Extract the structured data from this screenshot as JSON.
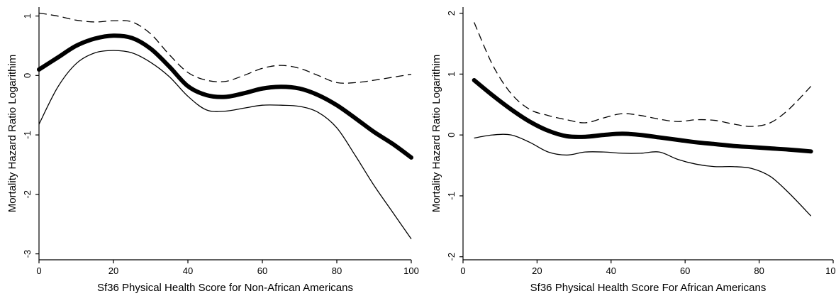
{
  "chart_data": [
    {
      "type": "line",
      "xlabel": "Sf36 Physical Health  Score for Non-African Americans",
      "ylabel": "Mortality Hazard Ratio Logarithim",
      "xlim": [
        0,
        100
      ],
      "ylim": [
        -3.1,
        1.15
      ],
      "xticks": [
        0,
        20,
        40,
        60,
        80,
        100
      ],
      "yticks": [
        1,
        0,
        -1,
        -2,
        -3
      ],
      "xtick_labels": [
        "0",
        "20",
        "40",
        "60",
        "80",
        "100"
      ],
      "ytick_labels": [
        "1",
        "0",
        "-1",
        "-2",
        "-3"
      ],
      "grid": false,
      "series": [
        {
          "role": "estimate",
          "x": [
            0,
            5,
            10,
            15,
            20,
            25,
            30,
            35,
            40,
            45,
            50,
            55,
            60,
            65,
            70,
            75,
            80,
            85,
            90,
            95,
            100
          ],
          "y": [
            0.1,
            0.3,
            0.5,
            0.62,
            0.67,
            0.63,
            0.45,
            0.15,
            -0.18,
            -0.33,
            -0.36,
            -0.3,
            -0.22,
            -0.19,
            -0.22,
            -0.33,
            -0.5,
            -0.72,
            -0.95,
            -1.15,
            -1.38
          ]
        },
        {
          "role": "upper",
          "x": [
            0,
            5,
            10,
            15,
            20,
            25,
            30,
            35,
            40,
            45,
            50,
            55,
            60,
            65,
            70,
            75,
            80,
            85,
            90,
            95,
            100
          ],
          "y": [
            1.05,
            1.0,
            0.93,
            0.9,
            0.92,
            0.9,
            0.7,
            0.35,
            0.05,
            -0.08,
            -0.1,
            0.0,
            0.12,
            0.17,
            0.12,
            0.0,
            -0.12,
            -0.12,
            -0.08,
            -0.03,
            0.02
          ]
        },
        {
          "role": "lower",
          "x": [
            0,
            5,
            10,
            15,
            20,
            25,
            30,
            35,
            40,
            45,
            50,
            55,
            60,
            65,
            70,
            75,
            80,
            85,
            90,
            95,
            100
          ],
          "y": [
            -0.82,
            -0.2,
            0.2,
            0.38,
            0.42,
            0.38,
            0.22,
            -0.02,
            -0.35,
            -0.58,
            -0.6,
            -0.55,
            -0.5,
            -0.5,
            -0.52,
            -0.62,
            -0.88,
            -1.35,
            -1.85,
            -2.3,
            -2.75
          ]
        }
      ]
    },
    {
      "type": "line",
      "xlabel": "Sf36 Physical Health Score For African Americans",
      "ylabel": "Mortality Hazard Ratio Logarithim",
      "xlim": [
        0,
        100
      ],
      "ylim": [
        -2.05,
        2.1
      ],
      "xticks": [
        0,
        20,
        40,
        60,
        80,
        100
      ],
      "yticks": [
        2,
        1,
        0,
        -1,
        -2
      ],
      "xtick_labels": [
        "0",
        "20",
        "40",
        "60",
        "80",
        "100"
      ],
      "ytick_labels": [
        "2",
        "1",
        "0",
        "-1",
        "-2"
      ],
      "grid": false,
      "series": [
        {
          "role": "estimate",
          "x": [
            3,
            8,
            13,
            18,
            23,
            28,
            33,
            38,
            43,
            48,
            53,
            58,
            63,
            68,
            73,
            78,
            83,
            88,
            94
          ],
          "y": [
            0.9,
            0.65,
            0.42,
            0.22,
            0.07,
            -0.02,
            -0.03,
            0.0,
            0.02,
            0.0,
            -0.04,
            -0.08,
            -0.12,
            -0.15,
            -0.18,
            -0.2,
            -0.22,
            -0.24,
            -0.27
          ]
        },
        {
          "role": "upper",
          "x": [
            3,
            8,
            13,
            18,
            23,
            28,
            33,
            38,
            43,
            48,
            53,
            58,
            63,
            68,
            73,
            78,
            83,
            88,
            94
          ],
          "y": [
            1.85,
            1.15,
            0.68,
            0.42,
            0.32,
            0.25,
            0.2,
            0.28,
            0.35,
            0.32,
            0.26,
            0.22,
            0.25,
            0.24,
            0.18,
            0.14,
            0.2,
            0.42,
            0.8
          ]
        },
        {
          "role": "lower",
          "x": [
            3,
            8,
            13,
            18,
            23,
            28,
            33,
            38,
            43,
            48,
            53,
            58,
            63,
            68,
            73,
            78,
            83,
            88,
            94
          ],
          "y": [
            -0.05,
            0.0,
            0.0,
            -0.12,
            -0.28,
            -0.33,
            -0.28,
            -0.28,
            -0.3,
            -0.3,
            -0.28,
            -0.4,
            -0.48,
            -0.52,
            -0.52,
            -0.55,
            -0.68,
            -0.95,
            -1.33
          ]
        }
      ]
    }
  ]
}
